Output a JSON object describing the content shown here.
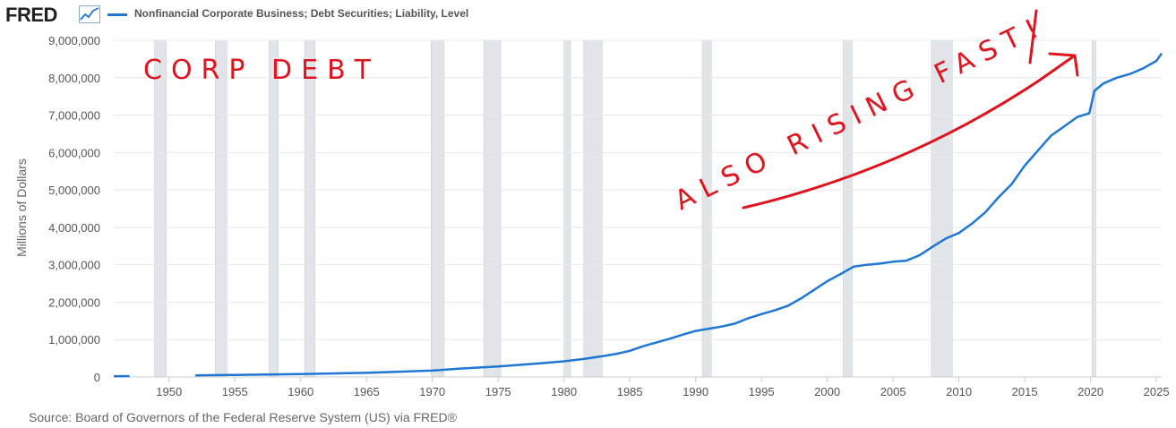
{
  "header": {
    "logo_text": "FRED",
    "series_label": "Nonfinancial Corporate Business; Debt Securities; Liability, Level"
  },
  "footer": {
    "source": "Source: Board of Governors of the Federal Reserve System (US) via FRED®"
  },
  "annotations": {
    "top_left": "CORP DEBT",
    "rising": "ALSO RISING FAST!"
  },
  "colors": {
    "series": "#1f77d4",
    "recession": "#e1e4e8",
    "annotation": "#e0141e"
  },
  "chart_data": {
    "type": "line",
    "title": "Nonfinancial Corporate Business; Debt Securities; Liability, Level",
    "xlabel": "",
    "ylabel": "Millions of Dollars",
    "xlim": [
      1945.8,
      2025.4
    ],
    "ylim": [
      0,
      9000000
    ],
    "y_ticks": [
      0,
      1000000,
      2000000,
      3000000,
      4000000,
      5000000,
      6000000,
      7000000,
      8000000,
      9000000
    ],
    "y_tick_labels": [
      "0",
      "1,000,000",
      "2,000,000",
      "3,000,000",
      "4,000,000",
      "5,000,000",
      "6,000,000",
      "7,000,000",
      "8,000,000",
      "9,000,000"
    ],
    "x_ticks": [
      1950,
      1955,
      1960,
      1965,
      1970,
      1975,
      1980,
      1985,
      1990,
      1995,
      2000,
      2005,
      2010,
      2015,
      2020,
      2025
    ],
    "x_tick_labels": [
      "1950",
      "1955",
      "1960",
      "1965",
      "1970",
      "1975",
      "1980",
      "1985",
      "1990",
      "1995",
      "2000",
      "2005",
      "2010",
      "2015",
      "2020",
      "2025"
    ],
    "grid": true,
    "recessions": [
      [
        1948.9,
        1949.8
      ],
      [
        1953.5,
        1954.4
      ],
      [
        1957.6,
        1958.3
      ],
      [
        1960.3,
        1961.1
      ],
      [
        1969.9,
        1970.9
      ],
      [
        1973.9,
        1975.2
      ],
      [
        1980.0,
        1980.5
      ],
      [
        1981.5,
        1982.9
      ],
      [
        1990.5,
        1991.2
      ],
      [
        2001.2,
        2001.9
      ],
      [
        2007.9,
        2009.5
      ],
      [
        2020.1,
        2020.4
      ]
    ],
    "series": [
      {
        "name": "Nonfinancial Corporate Business; Debt Securities; Liability, Level",
        "segments": [
          {
            "x": [
              1945.8,
              1946.5,
              1947.0
            ],
            "y": [
              20000,
              22000,
              24000
            ]
          },
          {
            "x": [
              1952.0,
              1955,
              1960,
              1965,
              1970,
              1972,
              1975,
              1978,
              1980,
              1981.5,
              1983,
              1984,
              1985,
              1986,
              1987,
              1988,
              1989,
              1990,
              1991,
              1992,
              1993,
              1994,
              1995,
              1996,
              1997,
              1998,
              1999,
              2000,
              2001,
              2002,
              2003,
              2004,
              2005,
              2006,
              2007,
              2008,
              2009,
              2010,
              2011,
              2012,
              2013,
              2014,
              2015,
              2016,
              2017,
              2018,
              2019,
              2019.9,
              2020.3,
              2021,
              2022,
              2023,
              2024,
              2025.0,
              2025.4
            ],
            "y": [
              40000,
              55000,
              80000,
              110000,
              170000,
              220000,
              280000,
              360000,
              420000,
              480000,
              560000,
              620000,
              700000,
              820000,
              920000,
              1020000,
              1130000,
              1230000,
              1290000,
              1350000,
              1430000,
              1570000,
              1680000,
              1780000,
              1900000,
              2100000,
              2330000,
              2560000,
              2750000,
              2950000,
              3000000,
              3030000,
              3080000,
              3110000,
              3250000,
              3480000,
              3700000,
              3850000,
              4100000,
              4400000,
              4800000,
              5150000,
              5650000,
              6050000,
              6450000,
              6700000,
              6950000,
              7050000,
              7650000,
              7850000,
              8000000,
              8100000,
              8250000,
              8450000,
              8650000
            ]
          }
        ]
      }
    ]
  }
}
